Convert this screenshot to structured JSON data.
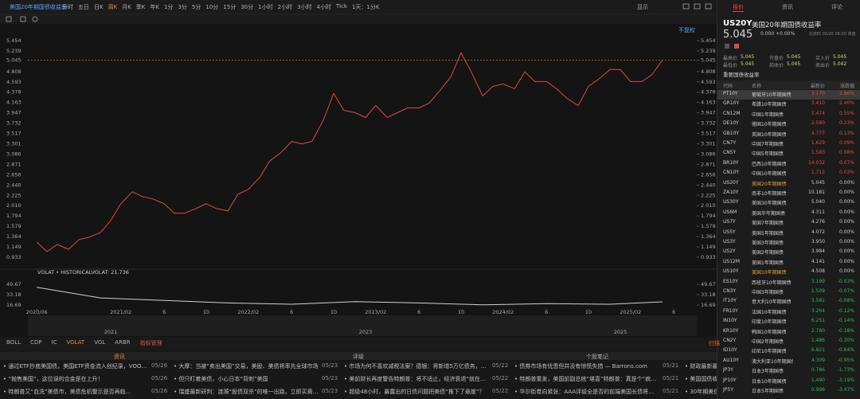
{
  "toolbar": {
    "title": "美国20年期国债收益率",
    "periods": [
      "分时",
      "五日",
      "日K",
      "周K",
      "月K",
      "季K",
      "年K",
      "1分",
      "3分",
      "5分",
      "10分",
      "15分",
      "30分",
      "1小时",
      "2小时",
      "3小时",
      "4小时",
      "Tick",
      "1天：1分K"
    ],
    "active_index": 3,
    "display": "显示",
    "adjust": "不复权"
  },
  "chart_data": [
    {
      "type": "line",
      "xlim": [
        2020.35,
        2025.6
      ],
      "ylim": [
        0.734,
        5.753
      ],
      "last_line": true,
      "yticks": [
        5.454,
        5.239,
        5.045,
        4.808,
        4.593,
        4.378,
        4.163,
        3.947,
        3.732,
        3.517,
        3.301,
        3.086,
        2.871,
        2.656,
        {
          "value": 2.44,
          "label": "2.440"
        },
        2.225,
        {
          "value": 2.01,
          "label": "2.010"
        },
        1.794,
        1.579,
        1.364,
        1.149,
        0.933
      ],
      "x": [
        2020.42,
        2020.5,
        2020.58,
        2020.67,
        2020.75,
        2020.83,
        2020.92,
        2021.0,
        2021.08,
        2021.17,
        2021.25,
        2021.33,
        2021.42,
        2021.5,
        2021.58,
        2021.67,
        2021.75,
        2021.83,
        2021.92,
        2022.0,
        2022.08,
        2022.17,
        2022.25,
        2022.33,
        2022.42,
        2022.5,
        2022.58,
        2022.67,
        2022.75,
        2022.83,
        2022.92,
        2023.0,
        2023.08,
        2023.17,
        2023.25,
        2023.33,
        2023.42,
        2023.5,
        2023.58,
        2023.67,
        2023.75,
        2023.83,
        2023.92,
        2024.0,
        2024.08,
        2024.17,
        2024.25,
        2024.33,
        2024.42,
        2024.5,
        2024.58,
        2024.67,
        2024.75,
        2024.83,
        2024.92,
        2025.0,
        2025.08,
        2025.17,
        2025.25,
        2025.33
      ],
      "series": [
        {
          "color": "#e04848",
          "values": [
            1.25,
            1.05,
            1.2,
            1.1,
            1.3,
            1.35,
            1.45,
            1.7,
            2.05,
            2.3,
            2.2,
            2.15,
            2.05,
            1.85,
            1.85,
            1.95,
            2.05,
            1.95,
            1.9,
            2.25,
            2.35,
            2.6,
            2.95,
            3.1,
            3.35,
            3.3,
            3.35,
            3.8,
            4.35,
            4.0,
            3.95,
            3.85,
            4.1,
            3.85,
            3.95,
            4.05,
            4.05,
            4.15,
            4.4,
            4.7,
            5.2,
            4.8,
            4.3,
            4.5,
            4.55,
            4.45,
            4.8,
            4.6,
            4.6,
            4.45,
            4.25,
            4.1,
            4.5,
            4.65,
            4.85,
            4.85,
            4.6,
            4.6,
            4.75,
            5.045
          ]
        }
      ]
    },
    {
      "type": "line",
      "label": "VOLAT • HISTORICALVOLAT: 21.736",
      "xlim": [
        2020.35,
        2025.6
      ],
      "ylim": [
        10.34,
        58.55
      ],
      "yticks": [
        49.67,
        33.18,
        16.69
      ],
      "xticks": [
        {
          "value": 2020.42,
          "label": "2020/06"
        },
        {
          "value": 2021.08,
          "label": "2021/02"
        },
        {
          "value": 2021.42,
          "label": "6"
        },
        {
          "value": 2021.75,
          "label": "10"
        },
        {
          "value": 2022.08,
          "label": "2022/02"
        },
        {
          "value": 2022.42,
          "label": "6"
        },
        {
          "value": 2022.75,
          "label": "10"
        },
        {
          "value": 2023.08,
          "label": "2023/02"
        },
        {
          "value": 2023.42,
          "label": "6"
        },
        {
          "value": 2023.75,
          "label": "10"
        },
        {
          "value": 2024.08,
          "label": "2024/02"
        },
        {
          "value": 2024.42,
          "label": "6"
        },
        {
          "value": 2024.75,
          "label": "10"
        },
        {
          "value": 2025.08,
          "label": "2025/02"
        },
        {
          "value": 2025.42,
          "label": "6"
        }
      ],
      "x": [
        2020.42,
        2020.92,
        2021.42,
        2021.92,
        2022.42,
        2022.92,
        2023.42,
        2023.92,
        2024.42,
        2024.92,
        2025.33
      ],
      "series": [
        {
          "color": "#d0d0d0",
          "values": [
            45,
            28,
            24,
            20,
            18,
            22,
            20,
            17,
            19,
            18,
            21.7
          ]
        }
      ]
    }
  ],
  "navigator": {
    "ticks": [
      2021,
      2023,
      2025
    ]
  },
  "indicator_tabs": {
    "items": [
      "BOLL",
      "CDP",
      "IC",
      "VOLAT",
      "VOL",
      "ARBR",
      "指标管理"
    ],
    "active_index": 3,
    "scan": "扫描"
  },
  "news": {
    "headers": [
      "资讯",
      "评级",
      "个股笔记"
    ],
    "columns": [
      [
        {
          "text": "• 通过ETF抄底美国债，美国ETF资金流入创纪录，VOO吸金650...",
          "date": "05/26"
        },
        {
          "text": "• “抛售美国”，这位误的合金是在上升！",
          "date": "05/26"
        },
        {
          "text": "• 特朗普又“血洗”美债市，美债危机警示是否再临...",
          "date": "05/26"
        }
      ],
      [
        {
          "text": "• 大摩：当被“卖出美国”交易，美股、美债将率先全球市场",
          "date": "05/23"
        },
        {
          "text": "• 但只盯着美债，小心日本“背刺”美国",
          "date": "05/23"
        },
        {
          "text": "• 瑞盛最新研判：涟漪“股债双杀”的唯一出路，立即买黄金！",
          "date": "05/23"
        }
      ],
      [
        {
          "text": "• 市场为何不喜欢减税法案？德银：将新增5万亿债务，“特朗普几...",
          "date": "05/22"
        },
        {
          "text": "• 美前财长再度警告特朗普：将不适止，经济衰退“就在眼前”！",
          "date": "05/22"
        },
        {
          "text": "• 超级48小时，暴露出的日债问题把美债“推下了悬崖”？",
          "date": "05/22"
        }
      ],
      [
        {
          "text": "• 债券市场有忧患但并没有惊慌失措 — Barrons.com",
          "date": "05/21"
        },
        {
          "text": "• 特朗普重发，美国前副总统“堪喜”特朗普：真是个“疯子”！",
          "date": "05/21"
        },
        {
          "text": "• 华尔街卷向紧张：AAA评级全是否的前端美国长债将卷发担忧？",
          "date": "05/21"
        }
      ],
      [
        {
          "text": "• 财政最新最好",
          "date": ""
        },
        {
          "text": "• 美国国债收益率",
          "date": ""
        },
        {
          "text": "• 30年期美债收益",
          "date": ""
        }
      ]
    ]
  },
  "quote": {
    "tabs": [
      "报价",
      "资讯",
      "评论"
    ],
    "active_index": 0,
    "code": "US20Y",
    "name": "美国20年期国债收益率",
    "price": "5.045",
    "change": "0.000 +0.00%",
    "time": "北京时 05/26 06:00 收盘",
    "stats": [
      {
        "label": "最高价",
        "value": "5.045"
      },
      {
        "label": "开盘价",
        "value": "5.045"
      },
      {
        "label": "买入价",
        "value": "5.045"
      },
      {
        "label": "最低价",
        "value": "5.045"
      },
      {
        "label": "前收价",
        "value": "5.045"
      },
      {
        "label": "卖出价",
        "value": "5.042"
      }
    ],
    "section": "重要国债收益率"
  },
  "table": {
    "header": [
      "代码",
      "名称",
      "最新价",
      "涨跌幅"
    ],
    "selected_row": 0,
    "highlight_rows": [
      9,
      18
    ],
    "rows": [
      [
        "PT10Y",
        "葡萄牙10年期国债",
        "3.170",
        "2.86%"
      ],
      [
        "GR10Y",
        "希腊10年期国债",
        "3.410",
        "2.40%"
      ],
      [
        "CN12M",
        "中国1年期国债",
        "1.474",
        "0.55%"
      ],
      [
        "DE10Y",
        "德国10年期国债",
        "2.580",
        "0.23%"
      ],
      [
        "GB10Y",
        "英国10年期国债",
        "4.777",
        "0.13%"
      ],
      [
        "CN7Y",
        "中国7年期国债",
        "1.629",
        "0.09%"
      ],
      [
        "CN5Y",
        "中国5年期国债",
        "1.583",
        "0.08%"
      ],
      [
        "BR10Y",
        "巴西10年期国债",
        "14.032",
        "0.07%"
      ],
      [
        "CN10Y",
        "中国10年期国债",
        "1.712",
        "0.03%"
      ],
      [
        "US20Y",
        "美国20年期国债",
        "5.045",
        "0.00%"
      ],
      [
        "ZA10Y",
        "南非10年期国债",
        "10.181",
        "0.00%"
      ],
      [
        "US30Y",
        "美国30年期国债",
        "5.040",
        "0.00%"
      ],
      [
        "US6M",
        "美国半年期国债",
        "4.311",
        "0.00%"
      ],
      [
        "US7Y",
        "美国7年期国债",
        "4.276",
        "0.00%"
      ],
      [
        "US5Y",
        "美国5年期国债",
        "4.072",
        "0.00%"
      ],
      [
        "US3Y",
        "美国3年期国债",
        "3.950",
        "0.00%"
      ],
      [
        "US2Y",
        "美国2年期国债",
        "3.984",
        "0.00%"
      ],
      [
        "US12M",
        "美国1年期国债",
        "4.141",
        "0.00%"
      ],
      [
        "US10Y",
        "美国10年期国债",
        "4.508",
        "0.00%"
      ],
      [
        "ES10Y",
        "西班牙10年期国债",
        "3.199",
        "-0.03%"
      ],
      [
        "CN3Y",
        "中国3年期国债",
        "1.509",
        "-0.07%"
      ],
      [
        "IT10Y",
        "意大利10年期国债",
        "3.581",
        "-0.08%"
      ],
      [
        "FR10Y",
        "法国10年期国债",
        "3.264",
        "-0.12%"
      ],
      [
        "IN10Y",
        "印度10年期国债",
        "6.251",
        "-0.14%"
      ],
      [
        "KR10Y",
        "韩国10年期国债",
        "2.780",
        "-0.18%"
      ],
      [
        "CN2Y",
        "中国2年期国债",
        "1.486",
        "-0.30%"
      ],
      [
        "ID10Y",
        "印尼10年期国债",
        "6.821",
        "-0.64%"
      ],
      [
        "AU10Y",
        "澳大利亚10年期国债",
        "4.309",
        "-0.95%"
      ],
      [
        "JP3Y",
        "日本3年期国债",
        "0.786",
        "-1.73%"
      ],
      [
        "JP10Y",
        "日本10年期国债",
        "1.490",
        "-3.19%"
      ],
      [
        "JP5Y",
        "日本5年期国债",
        "0.996",
        "-3.47%"
      ]
    ]
  }
}
